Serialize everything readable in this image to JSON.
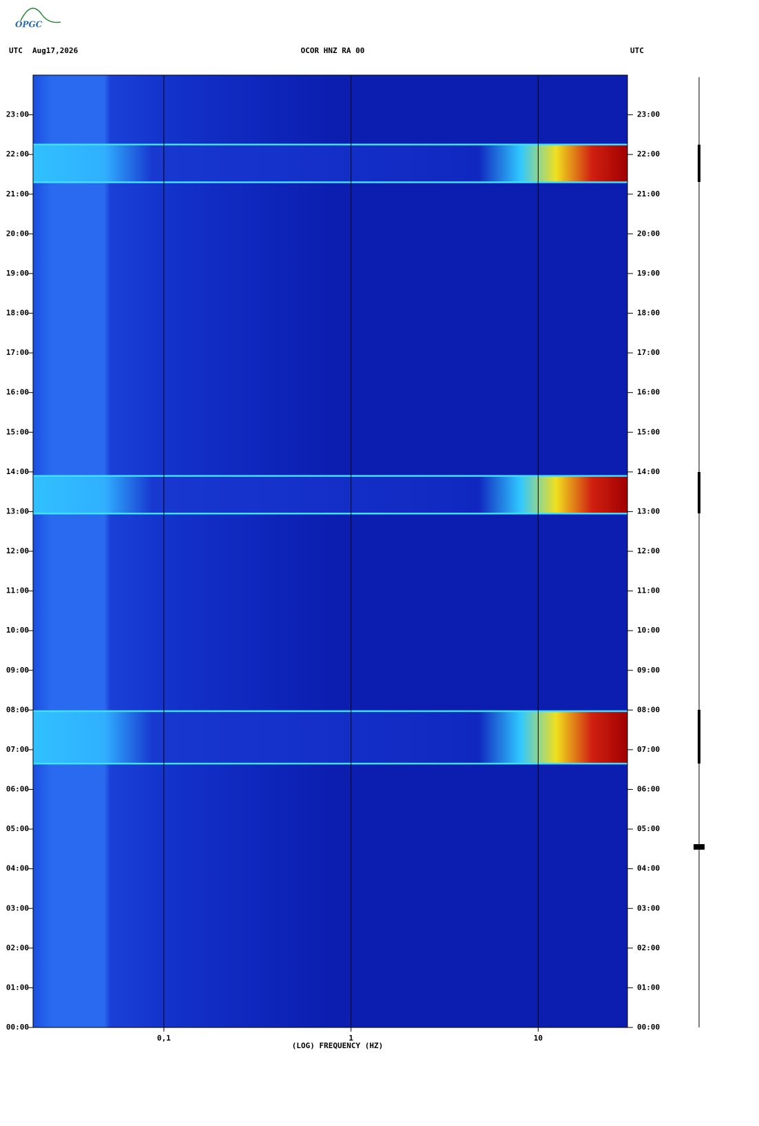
{
  "logo": "OPGC",
  "chart_data": {
    "type": "spectrogram",
    "title": "OCOR HNZ RA 00",
    "date": "Aug17,2026",
    "time_zone": "UTC",
    "xlabel": "(LOG) FREQUENCY (HZ)",
    "xscale": "log",
    "xlim": [
      0.02,
      30
    ],
    "xticks": [
      {
        "value": 0.1,
        "label": "0,1"
      },
      1,
      10
    ],
    "ylim": [
      0,
      24
    ],
    "yticks": [
      {
        "value": 0,
        "label": "00:00"
      },
      {
        "value": 1,
        "label": "01:00"
      },
      {
        "value": 2,
        "label": "02:00"
      },
      {
        "value": 3,
        "label": "03:00"
      },
      {
        "value": 4,
        "label": "04:00"
      },
      {
        "value": 5,
        "label": "05:00"
      },
      {
        "value": 6,
        "label": "06:00"
      },
      {
        "value": 7,
        "label": "07:00"
      },
      {
        "value": 8,
        "label": "08:00"
      },
      {
        "value": 9,
        "label": "09:00"
      },
      {
        "value": 10,
        "label": "10:00"
      },
      {
        "value": 11,
        "label": "11:00"
      },
      {
        "value": 12,
        "label": "12:00"
      },
      {
        "value": 13,
        "label": "13:00"
      },
      {
        "value": 14,
        "label": "14:00"
      },
      {
        "value": 15,
        "label": "15:00"
      },
      {
        "value": 16,
        "label": "16:00"
      },
      {
        "value": 17,
        "label": "17:00"
      },
      {
        "value": 18,
        "label": "18:00"
      },
      {
        "value": 19,
        "label": "19:00"
      },
      {
        "value": 20,
        "label": "20:00"
      },
      {
        "value": 21,
        "label": "21:00"
      },
      {
        "value": 22,
        "label": "22:00"
      },
      {
        "value": 23,
        "label": "23:00"
      }
    ],
    "grid": true,
    "events": [
      {
        "start": 21.3,
        "end": 22.25
      },
      {
        "start": 12.95,
        "end": 13.9
      },
      {
        "start": 6.65,
        "end": 7.97
      }
    ]
  }
}
